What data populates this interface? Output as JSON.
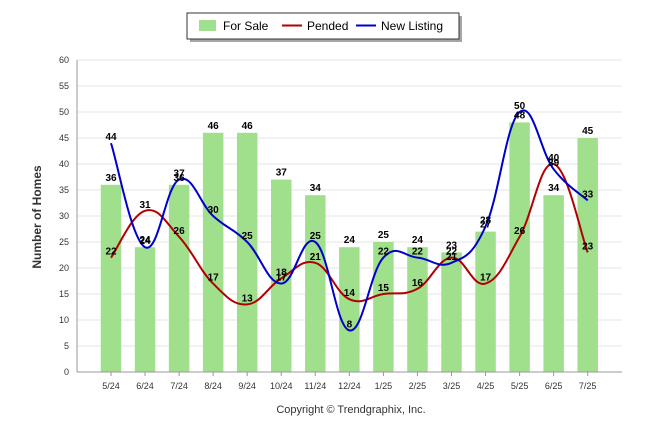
{
  "chart_data": {
    "type": "bar",
    "categories": [
      "5/24",
      "6/24",
      "7/24",
      "8/24",
      "9/24",
      "10/24",
      "11/24",
      "12/24",
      "1/25",
      "2/25",
      "3/25",
      "4/25",
      "5/25",
      "6/25",
      "7/25"
    ],
    "series": [
      {
        "name": "For Sale",
        "type": "bar",
        "color": "#a0e08c",
        "values": [
          36,
          24,
          36,
          46,
          46,
          37,
          34,
          24,
          25,
          24,
          23,
          27,
          48,
          34,
          45
        ]
      },
      {
        "name": "Pended",
        "type": "line",
        "color": "#b20000",
        "values": [
          22,
          31,
          26,
          17,
          13,
          18,
          21,
          14,
          15,
          16,
          22,
          17,
          26,
          40,
          23
        ]
      },
      {
        "name": "New Listing",
        "type": "line",
        "color": "#0000cc",
        "values": [
          44,
          24,
          37,
          30,
          25,
          17,
          25,
          8,
          22,
          22,
          21,
          28,
          50,
          39,
          33
        ]
      }
    ],
    "ylabel": "Number of Homes",
    "xlabel": "",
    "ylim": [
      0,
      60
    ],
    "yticks": [
      0,
      5,
      10,
      15,
      20,
      25,
      30,
      35,
      40,
      45,
      50,
      55,
      60
    ],
    "grid": true,
    "legend_position": "top-center",
    "copyright": "Copyright © Trendgraphix, Inc."
  }
}
